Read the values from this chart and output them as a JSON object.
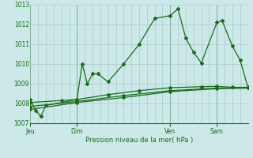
{
  "bg_color": "#cce8e8",
  "grid_color": "#aacccc",
  "line_color": "#1a6b1a",
  "ylabel": "Pression niveau de la mer( hPa )",
  "ylim": [
    1007,
    1013
  ],
  "yticks": [
    1007,
    1008,
    1009,
    1010,
    1011,
    1012,
    1013
  ],
  "day_labels": [
    "Jeu",
    "Dim",
    "Ven",
    "Sam"
  ],
  "day_positions": [
    0,
    36,
    108,
    144
  ],
  "total_hours": 168,
  "series1_x": [
    0,
    4,
    8,
    12,
    36,
    40,
    44,
    48,
    52,
    60,
    72,
    84,
    96,
    108,
    114,
    120,
    126,
    132,
    144,
    148,
    156,
    162,
    168
  ],
  "series1_y": [
    1008.2,
    1007.65,
    1007.35,
    1007.9,
    1008.2,
    1010.0,
    1009.0,
    1009.5,
    1009.5,
    1009.1,
    1010.0,
    1011.0,
    1012.3,
    1012.45,
    1012.8,
    1011.3,
    1010.6,
    1010.05,
    1012.1,
    1012.2,
    1010.9,
    1010.2,
    1008.8
  ],
  "series2_x": [
    0,
    24,
    36,
    60,
    84,
    108,
    132,
    144,
    156,
    168
  ],
  "series2_y": [
    1008.05,
    1008.15,
    1008.2,
    1008.45,
    1008.65,
    1008.8,
    1008.85,
    1008.87,
    1008.82,
    1008.82
  ],
  "series3_x": [
    0,
    36,
    72,
    108,
    144,
    168
  ],
  "series3_y": [
    1007.85,
    1008.1,
    1008.4,
    1008.65,
    1008.78,
    1008.8
  ],
  "series4_x": [
    0,
    36,
    72,
    108,
    144,
    168
  ],
  "series4_y": [
    1007.7,
    1008.05,
    1008.3,
    1008.6,
    1008.75,
    1008.78
  ]
}
